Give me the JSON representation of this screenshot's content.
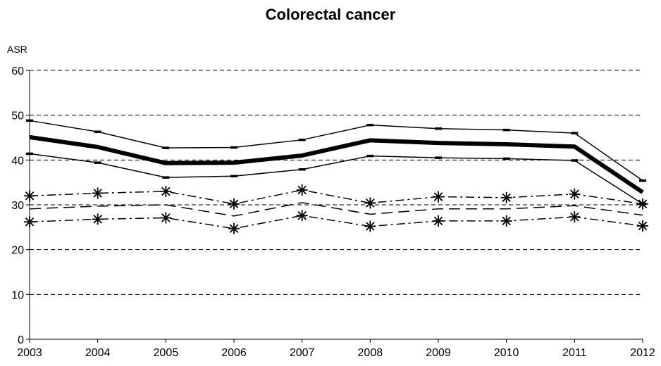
{
  "chart_data": {
    "type": "line",
    "title": "Colorectal cancer",
    "ylabel": "ASR",
    "xlabel": "",
    "x": [
      "2003",
      "2004",
      "2005",
      "2006",
      "2007",
      "2008",
      "2009",
      "2010",
      "2011",
      "2012"
    ],
    "ylim": [
      0,
      60
    ],
    "yticks": [
      "0",
      "10",
      "20",
      "30",
      "40",
      "50",
      "60"
    ],
    "grid": "horizontal-dashed",
    "series": [
      {
        "style": "thick-solid",
        "color": "#000000",
        "values": [
          45.1,
          42.9,
          39.3,
          39.4,
          41.0,
          44.4,
          43.8,
          43.5,
          43.0,
          32.8
        ]
      },
      {
        "style": "thin-solid-upper",
        "color": "#000000",
        "values": [
          48.8,
          46.3,
          42.7,
          42.8,
          44.5,
          47.8,
          47.0,
          46.7,
          46.0,
          35.4
        ]
      },
      {
        "style": "thin-solid-lower",
        "color": "#000000",
        "values": [
          41.4,
          39.4,
          36.1,
          36.4,
          37.9,
          40.9,
          40.5,
          40.3,
          39.9,
          30.2
        ]
      },
      {
        "style": "long-dash",
        "color": "#000000",
        "values": [
          29.1,
          29.7,
          30.0,
          27.5,
          30.5,
          27.9,
          29.1,
          29.1,
          29.8,
          27.7
        ]
      },
      {
        "style": "dash-dot-star-upper",
        "color": "#000000",
        "values": [
          32.0,
          32.6,
          33.0,
          30.2,
          33.3,
          30.4,
          31.8,
          31.6,
          32.4,
          30.2
        ]
      },
      {
        "style": "dash-dot-star-lower",
        "color": "#000000",
        "values": [
          26.2,
          26.8,
          27.1,
          24.7,
          27.6,
          25.2,
          26.4,
          26.4,
          27.3,
          25.3
        ]
      }
    ]
  }
}
